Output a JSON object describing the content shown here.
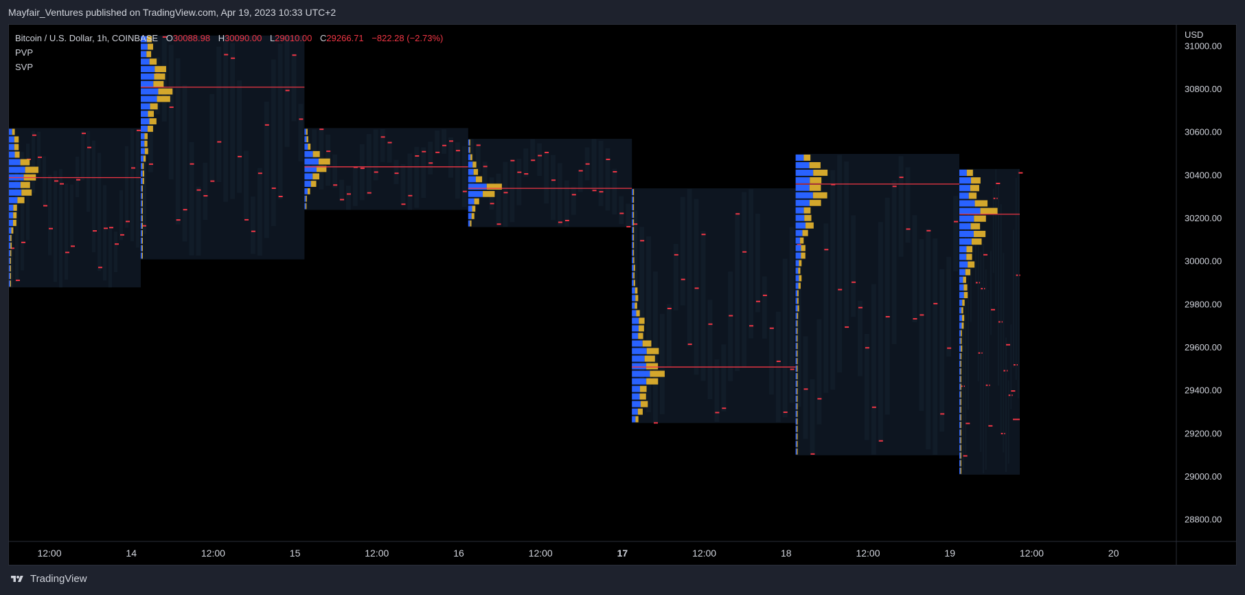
{
  "header": {
    "published": "Mayfair_Ventures published on TradingView.com, Apr 19, 2023 10:33 UTC+2"
  },
  "legend": {
    "symbol": "Bitcoin / U.S. Dollar, 1h, COINBASE",
    "o_label": "O",
    "o_value": "30088.98",
    "h_label": "H",
    "h_value": "30090.00",
    "l_label": "L",
    "l_value": "29010.00",
    "c_label": "C",
    "c_value": "29266.71",
    "change": "−822.28 (−2.73%)",
    "indicators": [
      "PVP",
      "SVP"
    ]
  },
  "footer": {
    "brand": "TradingView"
  },
  "colors": {
    "background": "#000000",
    "frame": "#1e222d",
    "poc_line": "#f23645",
    "up_volume": "#2962ff",
    "down_volume": "#d4a72c",
    "profile_box": "#0d1520"
  },
  "chart_data": {
    "type": "volume-profile",
    "currency": "USD",
    "y_ticks": [
      "31000.00",
      "30800.00",
      "30600.00",
      "30400.00",
      "30200.00",
      "30000.00",
      "29800.00",
      "29600.00",
      "29400.00",
      "29200.00",
      "29000.00",
      "28800.00"
    ],
    "x_ticks": [
      "12:00",
      "14",
      "12:00",
      "15",
      "12:00",
      "16",
      "12:00",
      "17",
      "12:00",
      "18",
      "12:00",
      "19",
      "12:00",
      "20"
    ],
    "bold_x_ticks": [
      "17"
    ],
    "ylim": [
      28700,
      31100
    ],
    "sessions": [
      {
        "day": "13",
        "high": 30620,
        "low": 29880,
        "poc": 30390
      },
      {
        "day": "14",
        "high": 31050,
        "low": 30010,
        "poc": 30810
      },
      {
        "day": "15",
        "high": 30620,
        "low": 30240,
        "poc": 30440
      },
      {
        "day": "16",
        "high": 30570,
        "low": 30160,
        "poc": 30340
      },
      {
        "day": "17",
        "high": 30340,
        "low": 29250,
        "poc": 29510
      },
      {
        "day": "18",
        "high": 30500,
        "low": 29100,
        "poc": 30360
      },
      {
        "day": "19",
        "high": 30430,
        "low": 29010,
        "poc": 30220
      }
    ],
    "close": 29266.71
  }
}
